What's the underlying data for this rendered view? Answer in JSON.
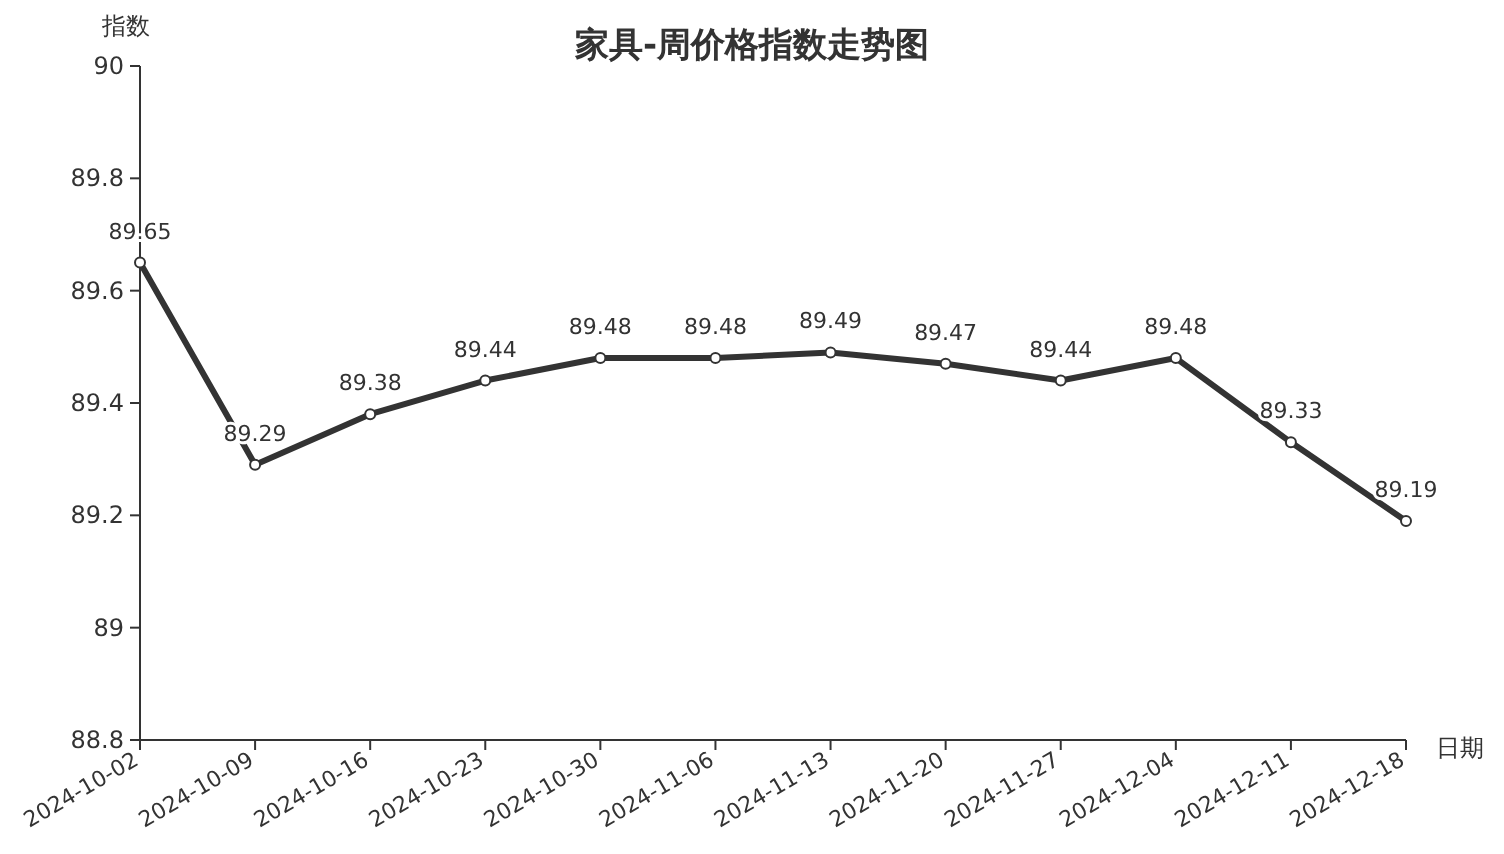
{
  "chart_data": {
    "type": "line",
    "title": "家具-周价格指数走势图",
    "xlabel": "日期",
    "ylabel": "指数",
    "categories": [
      "2024-10-02",
      "2024-10-09",
      "2024-10-16",
      "2024-10-23",
      "2024-10-30",
      "2024-11-06",
      "2024-11-13",
      "2024-11-20",
      "2024-11-27",
      "2024-12-04",
      "2024-12-11",
      "2024-12-18"
    ],
    "values": [
      89.65,
      89.29,
      89.38,
      89.44,
      89.48,
      89.48,
      89.49,
      89.47,
      89.44,
      89.48,
      89.33,
      89.19
    ],
    "color": "#333333",
    "ylim": [
      88.8,
      90
    ],
    "yticks": [
      88.8,
      89,
      89.2,
      89.4,
      89.6,
      89.8,
      90
    ],
    "data_labels": true,
    "marker": "circle"
  }
}
